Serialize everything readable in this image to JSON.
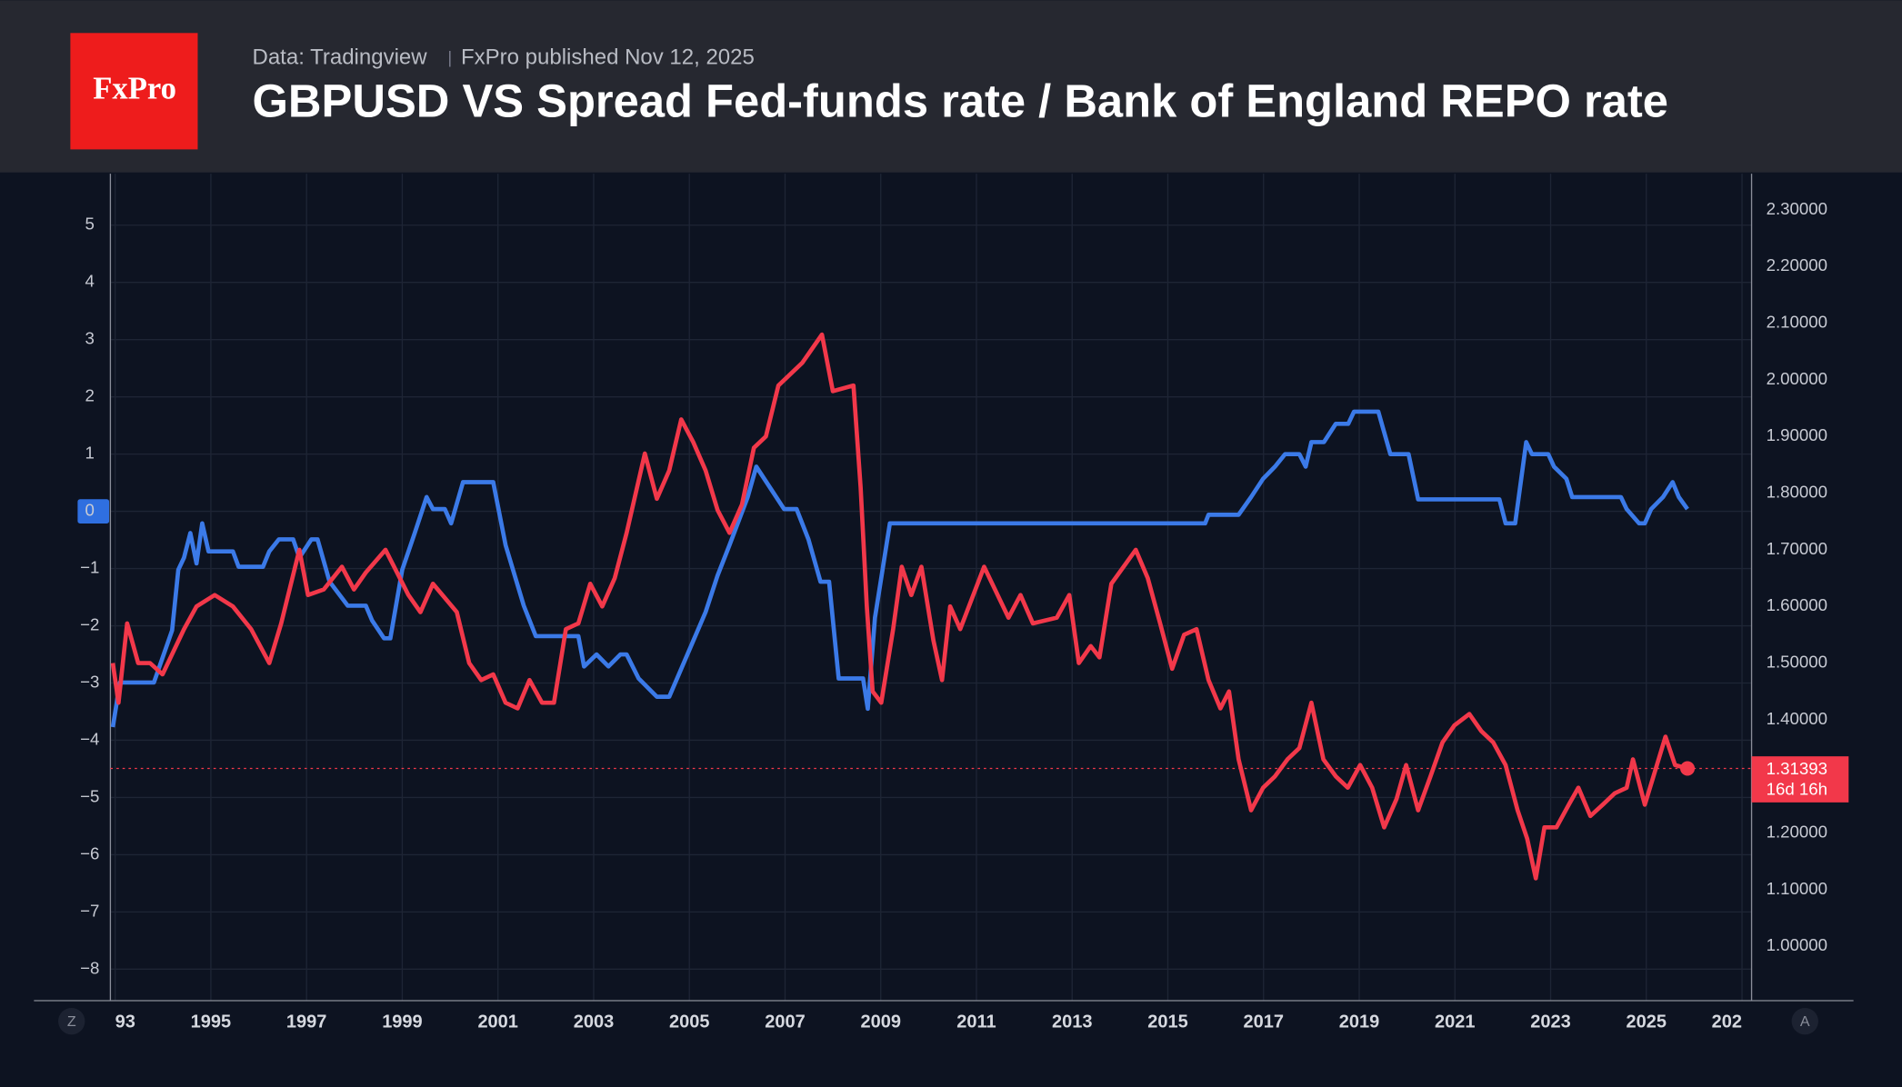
{
  "header": {
    "logo": "FxPro",
    "source": "Data: Tradingview",
    "published": "FxPro published Nov 12, 2025"
  },
  "buttons": [
    "Z",
    "A"
  ],
  "chart_data": {
    "type": "line",
    "title": "GBPUSD VS Spread Fed-funds rate / Bank of England REPO rate",
    "xlim": [
      1992.9,
      2027.2
    ],
    "xticks": [
      {
        "value": 1993,
        "label": "93"
      },
      1995,
      1997,
      1999,
      2001,
      2003,
      2005,
      2007,
      2009,
      2011,
      2013,
      2015,
      2017,
      2019,
      2021,
      2023,
      2025,
      {
        "value": 2027,
        "label": "202"
      }
    ],
    "ylim": [
      -8.55,
      5.9
    ],
    "yticks": [
      {
        "value": -8,
        "label": "−8"
      },
      {
        "value": -7,
        "label": "−7"
      },
      {
        "value": -6,
        "label": "−6"
      },
      {
        "value": -5,
        "label": "−5"
      },
      {
        "value": -4,
        "label": "−4"
      },
      {
        "value": -3,
        "label": "−3"
      },
      {
        "value": -2,
        "label": "−2"
      },
      {
        "value": -1,
        "label": "−1"
      },
      0,
      1,
      2,
      3,
      4,
      5
    ],
    "highlight_ytick": 0,
    "y2lim": [
      0.904,
      2.364
    ],
    "y2ticks": [
      {
        "value": 1.0,
        "label": "1.00000"
      },
      {
        "value": 1.1,
        "label": "1.10000"
      },
      {
        "value": 1.2,
        "label": "1.20000"
      },
      {
        "value": 1.3,
        "label": "1.30000"
      },
      {
        "value": 1.4,
        "label": "1.40000"
      },
      {
        "value": 1.5,
        "label": "1.50000"
      },
      {
        "value": 1.6,
        "label": "1.60000"
      },
      {
        "value": 1.7,
        "label": "1.70000"
      },
      {
        "value": 1.8,
        "label": "1.80000"
      },
      {
        "value": 1.9,
        "label": "1.90000"
      },
      {
        "value": 2.0,
        "label": "2.00000"
      },
      {
        "value": 2.1,
        "label": "2.10000"
      },
      {
        "value": 2.2,
        "label": "2.20000"
      },
      {
        "value": 2.3,
        "label": "2.30000"
      }
    ],
    "grid": true,
    "series": [
      {
        "color": "#3b7ae8",
        "x": [
          1992.95,
          1993.1,
          1993.81,
          1994.19,
          1994.32,
          1994.44,
          1994.57,
          1994.7,
          1994.82,
          1994.95,
          1995.46,
          1995.58,
          1996.09,
          1996.22,
          1996.42,
          1996.72,
          1996.85,
          1997.1,
          1997.23,
          1997.48,
          1997.86,
          1998.24,
          1998.37,
          1998.62,
          1998.75,
          1999.0,
          1999.26,
          1999.51,
          1999.64,
          1999.89,
          2000.02,
          2000.27,
          2000.9,
          2001.16,
          2001.54,
          2001.79,
          2002.68,
          2002.8,
          2003.06,
          2003.31,
          2003.56,
          2003.69,
          2003.94,
          2004.32,
          2004.58,
          2004.96,
          2005.34,
          2005.59,
          2005.84,
          2006.22,
          2006.4,
          2006.73,
          2006.98,
          2007.24,
          2007.49,
          2007.74,
          2007.92,
          2008.12,
          2008.63,
          2008.73,
          2008.88,
          2009.19,
          2015.78,
          2015.85,
          2016.48,
          2016.74,
          2016.99,
          2017.24,
          2017.45,
          2017.75,
          2017.88,
          2018.0,
          2018.26,
          2018.51,
          2018.77,
          2018.89,
          2019.4,
          2019.65,
          2020.03,
          2020.23,
          2021.93,
          2022.06,
          2022.26,
          2022.49,
          2022.61,
          2022.95,
          2023.07,
          2023.33,
          2023.45,
          2024.47,
          2024.59,
          2024.85,
          2024.97,
          2025.1,
          2025.35,
          2025.55,
          2025.68,
          2025.86
        ],
        "values": [
          -3.77,
          -2.99,
          -2.99,
          -2.08,
          -1.02,
          -0.81,
          -0.38,
          -0.91,
          -0.21,
          -0.7,
          -0.7,
          -0.97,
          -0.97,
          -0.7,
          -0.49,
          -0.49,
          -0.81,
          -0.49,
          -0.49,
          -1.23,
          -1.65,
          -1.65,
          -1.91,
          -2.22,
          -2.22,
          -1.02,
          -0.38,
          0.25,
          0.04,
          0.04,
          -0.21,
          0.51,
          0.51,
          -0.59,
          -1.65,
          -2.18,
          -2.18,
          -2.71,
          -2.5,
          -2.71,
          -2.5,
          -2.5,
          -2.92,
          -3.24,
          -3.24,
          -2.5,
          -1.76,
          -1.12,
          -0.59,
          0.25,
          0.78,
          0.36,
          0.04,
          0.04,
          -0.49,
          -1.23,
          -1.23,
          -2.92,
          -2.92,
          -3.45,
          -1.86,
          -0.21,
          -0.21,
          -0.06,
          -0.06,
          0.25,
          0.57,
          0.78,
          1.0,
          1.0,
          0.78,
          1.21,
          1.21,
          1.53,
          1.53,
          1.74,
          1.74,
          1.0,
          1.0,
          0.21,
          0.21,
          -0.21,
          -0.21,
          1.21,
          1.0,
          1.0,
          0.78,
          0.57,
          0.25,
          0.25,
          0.04,
          -0.21,
          -0.21,
          0.04,
          0.25,
          0.51,
          0.25,
          0.04
        ]
      },
      {
        "color": "#f2384a",
        "axis": "y2",
        "x": [
          1992.95,
          1993.07,
          1993.25,
          1993.48,
          1993.73,
          1993.99,
          1994.44,
          1994.7,
          1995.08,
          1995.46,
          1995.84,
          1996.22,
          1996.47,
          1996.85,
          1997.03,
          1997.36,
          1997.74,
          1997.99,
          1998.24,
          1998.65,
          1999.13,
          1999.38,
          1999.64,
          2000.14,
          2000.4,
          2000.65,
          2000.9,
          2001.16,
          2001.41,
          2001.66,
          2001.92,
          2002.17,
          2002.42,
          2002.68,
          2002.93,
          2003.18,
          2003.44,
          2003.69,
          2004.07,
          2004.32,
          2004.58,
          2004.83,
          2005.08,
          2005.34,
          2005.59,
          2005.84,
          2006.1,
          2006.35,
          2006.6,
          2006.86,
          2007.36,
          2007.77,
          2008.0,
          2008.43,
          2008.58,
          2008.71,
          2008.83,
          2009.01,
          2009.26,
          2009.44,
          2009.64,
          2009.85,
          2010.1,
          2010.28,
          2010.45,
          2010.66,
          2011.16,
          2011.67,
          2011.92,
          2012.18,
          2012.68,
          2012.94,
          2013.14,
          2013.39,
          2013.57,
          2013.82,
          2014.33,
          2014.58,
          2014.84,
          2015.09,
          2015.34,
          2015.6,
          2015.85,
          2016.1,
          2016.28,
          2016.48,
          2016.74,
          2016.99,
          2017.24,
          2017.5,
          2017.75,
          2018.0,
          2018.25,
          2018.51,
          2018.76,
          2019.02,
          2019.27,
          2019.52,
          2019.78,
          2019.98,
          2020.23,
          2020.49,
          2020.74,
          2020.99,
          2021.3,
          2021.55,
          2021.8,
          2022.06,
          2022.31,
          2022.51,
          2022.69,
          2022.87,
          2023.12,
          2023.38,
          2023.58,
          2023.83,
          2024.09,
          2024.34,
          2024.59,
          2024.72,
          2024.97,
          2025.15,
          2025.4,
          2025.6,
          2025.86
        ],
        "values": [
          1.5,
          1.43,
          1.57,
          1.5,
          1.5,
          1.48,
          1.56,
          1.6,
          1.62,
          1.6,
          1.56,
          1.5,
          1.57,
          1.7,
          1.62,
          1.63,
          1.67,
          1.63,
          1.66,
          1.7,
          1.62,
          1.59,
          1.64,
          1.59,
          1.5,
          1.47,
          1.48,
          1.43,
          1.42,
          1.47,
          1.43,
          1.43,
          1.56,
          1.57,
          1.64,
          1.6,
          1.65,
          1.73,
          1.87,
          1.79,
          1.84,
          1.93,
          1.89,
          1.84,
          1.77,
          1.73,
          1.78,
          1.88,
          1.9,
          1.99,
          2.03,
          2.08,
          1.98,
          1.99,
          1.81,
          1.6,
          1.45,
          1.43,
          1.56,
          1.67,
          1.62,
          1.67,
          1.54,
          1.47,
          1.6,
          1.56,
          1.67,
          1.58,
          1.62,
          1.57,
          1.58,
          1.62,
          1.5,
          1.53,
          1.51,
          1.64,
          1.7,
          1.65,
          1.57,
          1.49,
          1.55,
          1.56,
          1.47,
          1.42,
          1.45,
          1.33,
          1.24,
          1.28,
          1.3,
          1.33,
          1.35,
          1.43,
          1.33,
          1.3,
          1.28,
          1.32,
          1.28,
          1.21,
          1.26,
          1.32,
          1.24,
          1.3,
          1.36,
          1.39,
          1.41,
          1.38,
          1.36,
          1.32,
          1.24,
          1.19,
          1.12,
          1.21,
          1.21,
          1.25,
          1.28,
          1.23,
          1.25,
          1.27,
          1.28,
          1.33,
          1.25,
          1.3,
          1.37,
          1.32,
          1.31393
        ],
        "value_labels": {
          "124": "1.31393"
        },
        "countdown": "16d 16h"
      }
    ]
  }
}
